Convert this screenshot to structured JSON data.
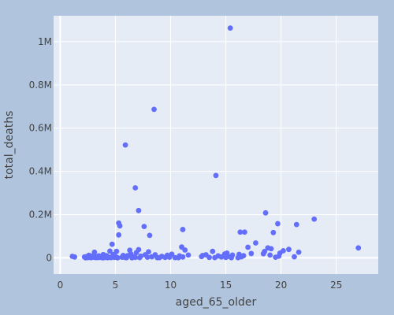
{
  "chart_data": {
    "type": "scatter",
    "title": "",
    "xlabel": "aged_65_older",
    "ylabel": "total_deaths",
    "xlim": [
      -0.6,
      28.8
    ],
    "ylim": [
      -75000,
      1120000
    ],
    "x_ticks": [
      {
        "value": 0,
        "label": "0"
      },
      {
        "value": 5,
        "label": "5"
      },
      {
        "value": 10,
        "label": "10"
      },
      {
        "value": 15,
        "label": "15"
      },
      {
        "value": 20,
        "label": "20"
      },
      {
        "value": 25,
        "label": "25"
      }
    ],
    "y_ticks": [
      {
        "value": 0,
        "label": "0"
      },
      {
        "value": 200000,
        "label": "0.2M"
      },
      {
        "value": 400000,
        "label": "0.4M"
      },
      {
        "value": 600000,
        "label": "0.6M"
      },
      {
        "value": 800000,
        "label": "0.8M"
      },
      {
        "value": 1000000,
        "label": "1M"
      }
    ],
    "grid": true,
    "colors": {
      "marker": "#636efa",
      "plot_bg": "#e5ecf6",
      "paper_bg": "#b0c4de",
      "grid": "#ffffff"
    },
    "series": [
      {
        "name": "total_deaths",
        "points": [
          {
            "x": 15.4,
            "y": 1063000
          },
          {
            "x": 8.5,
            "y": 687000
          },
          {
            "x": 5.9,
            "y": 522000
          },
          {
            "x": 14.1,
            "y": 381000
          },
          {
            "x": 6.8,
            "y": 324000
          },
          {
            "x": 7.1,
            "y": 219000
          },
          {
            "x": 18.6,
            "y": 208000
          },
          {
            "x": 23.0,
            "y": 179000
          },
          {
            "x": 5.3,
            "y": 161000
          },
          {
            "x": 19.7,
            "y": 158000
          },
          {
            "x": 21.4,
            "y": 154000
          },
          {
            "x": 5.4,
            "y": 148000
          },
          {
            "x": 7.6,
            "y": 145000
          },
          {
            "x": 11.1,
            "y": 131000
          },
          {
            "x": 16.3,
            "y": 119000
          },
          {
            "x": 16.7,
            "y": 119000
          },
          {
            "x": 19.3,
            "y": 117000
          },
          {
            "x": 5.3,
            "y": 106000
          },
          {
            "x": 8.1,
            "y": 104000
          },
          {
            "x": 17.7,
            "y": 69000
          },
          {
            "x": 4.7,
            "y": 63000
          },
          {
            "x": 11.0,
            "y": 50000
          },
          {
            "x": 17.0,
            "y": 49000
          },
          {
            "x": 27.0,
            "y": 46000
          },
          {
            "x": 18.8,
            "y": 46000
          },
          {
            "x": 19.1,
            "y": 42000
          },
          {
            "x": 20.7,
            "y": 39000
          },
          {
            "x": 7.1,
            "y": 38000
          },
          {
            "x": 11.3,
            "y": 36000
          },
          {
            "x": 6.3,
            "y": 35000
          },
          {
            "x": 20.2,
            "y": 33000
          },
          {
            "x": 4.5,
            "y": 31000
          },
          {
            "x": 5.1,
            "y": 30000
          },
          {
            "x": 13.8,
            "y": 30000
          },
          {
            "x": 18.5,
            "y": 29000
          },
          {
            "x": 8.0,
            "y": 28000
          },
          {
            "x": 21.6,
            "y": 26000
          },
          {
            "x": 3.1,
            "y": 26000
          },
          {
            "x": 6.9,
            "y": 24000
          },
          {
            "x": 19.9,
            "y": 22000
          },
          {
            "x": 15.1,
            "y": 22000
          },
          {
            "x": 17.3,
            "y": 20000
          },
          {
            "x": 18.4,
            "y": 19000
          },
          {
            "x": 14.9,
            "y": 18000
          },
          {
            "x": 6.4,
            "y": 18000
          },
          {
            "x": 10.1,
            "y": 17000
          },
          {
            "x": 16.2,
            "y": 16000
          },
          {
            "x": 3.9,
            "y": 15000
          },
          {
            "x": 4.8,
            "y": 15000
          },
          {
            "x": 13.2,
            "y": 14000
          },
          {
            "x": 7.7,
            "y": 14000
          },
          {
            "x": 8.6,
            "y": 14000
          },
          {
            "x": 11.6,
            "y": 13000
          },
          {
            "x": 19.0,
            "y": 13000
          },
          {
            "x": 15.6,
            "y": 13000
          },
          {
            "x": 2.6,
            "y": 12000
          },
          {
            "x": 9.7,
            "y": 12000
          },
          {
            "x": 5.7,
            "y": 11000
          },
          {
            "x": 12.9,
            "y": 11000
          },
          {
            "x": 16.6,
            "y": 10000
          },
          {
            "x": 4.2,
            "y": 10000
          },
          {
            "x": 6.1,
            "y": 10000
          },
          {
            "x": 14.3,
            "y": 9000
          },
          {
            "x": 3.5,
            "y": 9000
          },
          {
            "x": 10.8,
            "y": 9000
          },
          {
            "x": 19.8,
            "y": 8000
          },
          {
            "x": 2.9,
            "y": 8000
          },
          {
            "x": 7.3,
            "y": 8000
          },
          {
            "x": 1.1,
            "y": 7000
          },
          {
            "x": 9.2,
            "y": 7000
          },
          {
            "x": 15.2,
            "y": 7000
          },
          {
            "x": 4.0,
            "y": 6000
          },
          {
            "x": 2.4,
            "y": 6000
          },
          {
            "x": 5.0,
            "y": 6000
          },
          {
            "x": 12.8,
            "y": 6000
          },
          {
            "x": 21.2,
            "y": 5000
          },
          {
            "x": 3.3,
            "y": 5000
          },
          {
            "x": 6.6,
            "y": 5000
          },
          {
            "x": 16.4,
            "y": 5000
          },
          {
            "x": 8.3,
            "y": 5000
          },
          {
            "x": 3.7,
            "y": 4000
          },
          {
            "x": 14.6,
            "y": 4000
          },
          {
            "x": 1.3,
            "y": 4000
          },
          {
            "x": 2.2,
            "y": 4000
          },
          {
            "x": 11.1,
            "y": 4000
          },
          {
            "x": 9.9,
            "y": 3000
          },
          {
            "x": 4.4,
            "y": 3000
          },
          {
            "x": 5.6,
            "y": 3000
          },
          {
            "x": 3.0,
            "y": 3000
          },
          {
            "x": 7.9,
            "y": 3000
          },
          {
            "x": 19.5,
            "y": 3000
          },
          {
            "x": 2.7,
            "y": 2000
          },
          {
            "x": 4.1,
            "y": 2000
          },
          {
            "x": 6.8,
            "y": 2000
          },
          {
            "x": 13.5,
            "y": 2000
          },
          {
            "x": 3.6,
            "y": 2000
          },
          {
            "x": 4.9,
            "y": 2000
          },
          {
            "x": 9.5,
            "y": 2000
          },
          {
            "x": 15.0,
            "y": 2000
          },
          {
            "x": 2.5,
            "y": 1000
          },
          {
            "x": 3.4,
            "y": 1000
          },
          {
            "x": 4.6,
            "y": 1000
          },
          {
            "x": 5.9,
            "y": 1000
          },
          {
            "x": 3.2,
            "y": 1000
          },
          {
            "x": 7.2,
            "y": 1000
          },
          {
            "x": 9.0,
            "y": 1000
          },
          {
            "x": 10.4,
            "y": 1000
          },
          {
            "x": 14.0,
            "y": 1000
          },
          {
            "x": 2.8,
            "y": 500
          },
          {
            "x": 3.8,
            "y": 500
          },
          {
            "x": 4.3,
            "y": 500
          },
          {
            "x": 6.0,
            "y": 500
          },
          {
            "x": 8.8,
            "y": 500
          },
          {
            "x": 10.7,
            "y": 500
          },
          {
            "x": 15.5,
            "y": 500
          },
          {
            "x": 16.1,
            "y": 500
          },
          {
            "x": 2.3,
            "y": 300
          },
          {
            "x": 3.9,
            "y": 300
          },
          {
            "x": 5.2,
            "y": 300
          },
          {
            "x": 6.5,
            "y": 300
          }
        ]
      }
    ]
  }
}
